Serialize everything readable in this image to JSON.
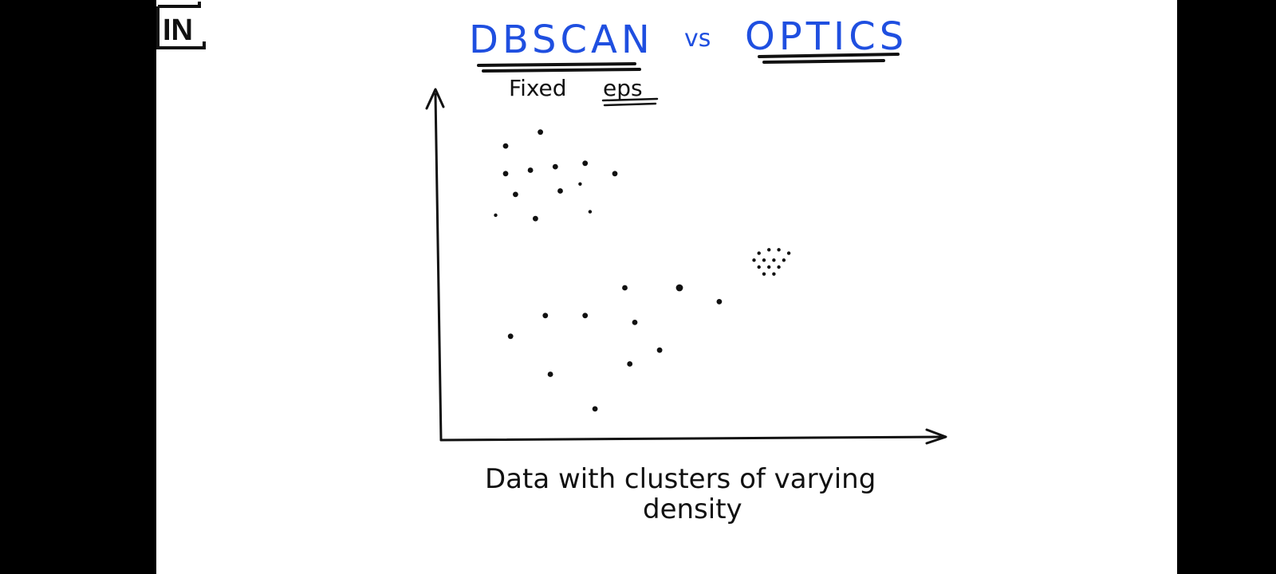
{
  "slide": {
    "title_left": "DBSCAN",
    "title_vs": "vs",
    "title_right": "OPTICS",
    "subtitle_prefix": "Fixed ",
    "subtitle_emph": "eps",
    "caption_line1": "Data with clusters of varying",
    "caption_line2": "density",
    "logo_text": "IN",
    "colors": {
      "title": "#1f4fe0",
      "ink": "#111111",
      "background": "#ffffff",
      "letterbox": "#000000"
    }
  },
  "chart_data": {
    "type": "scatter",
    "title": "",
    "xlabel": "",
    "ylabel": "",
    "grid": false,
    "xlim": [
      0,
      100
    ],
    "ylim": [
      0,
      100
    ],
    "series": [
      {
        "points": [
          [
            13,
            85
          ],
          [
            20,
            89
          ],
          [
            13,
            77
          ],
          [
            18,
            78
          ],
          [
            23,
            79
          ],
          [
            29,
            80
          ],
          [
            35,
            77
          ],
          [
            15,
            71
          ],
          [
            24,
            72
          ],
          [
            28,
            74
          ],
          [
            11,
            65
          ],
          [
            19,
            64
          ],
          [
            30,
            66
          ],
          [
            14,
            30
          ],
          [
            21,
            36
          ],
          [
            29,
            36
          ],
          [
            37,
            44
          ],
          [
            48,
            44
          ],
          [
            56,
            40
          ],
          [
            39,
            34
          ],
          [
            44,
            26
          ],
          [
            38,
            22
          ],
          [
            22,
            19
          ],
          [
            31,
            9
          ],
          [
            64,
            54
          ],
          [
            66,
            55
          ],
          [
            68,
            55
          ],
          [
            70,
            54
          ],
          [
            63,
            52
          ],
          [
            65,
            52
          ],
          [
            67,
            52
          ],
          [
            69,
            52
          ],
          [
            64,
            50
          ],
          [
            66,
            50
          ],
          [
            68,
            50
          ],
          [
            65,
            48
          ],
          [
            67,
            48
          ]
        ],
        "sizes": [
          2,
          2,
          2,
          2,
          2,
          2,
          2,
          2,
          2,
          1,
          1,
          2,
          1,
          2,
          2,
          2,
          2,
          3,
          2,
          2,
          2,
          2,
          2,
          2,
          1,
          1,
          1,
          1,
          1,
          1,
          1,
          1,
          1,
          1,
          1,
          1,
          1
        ]
      }
    ]
  }
}
